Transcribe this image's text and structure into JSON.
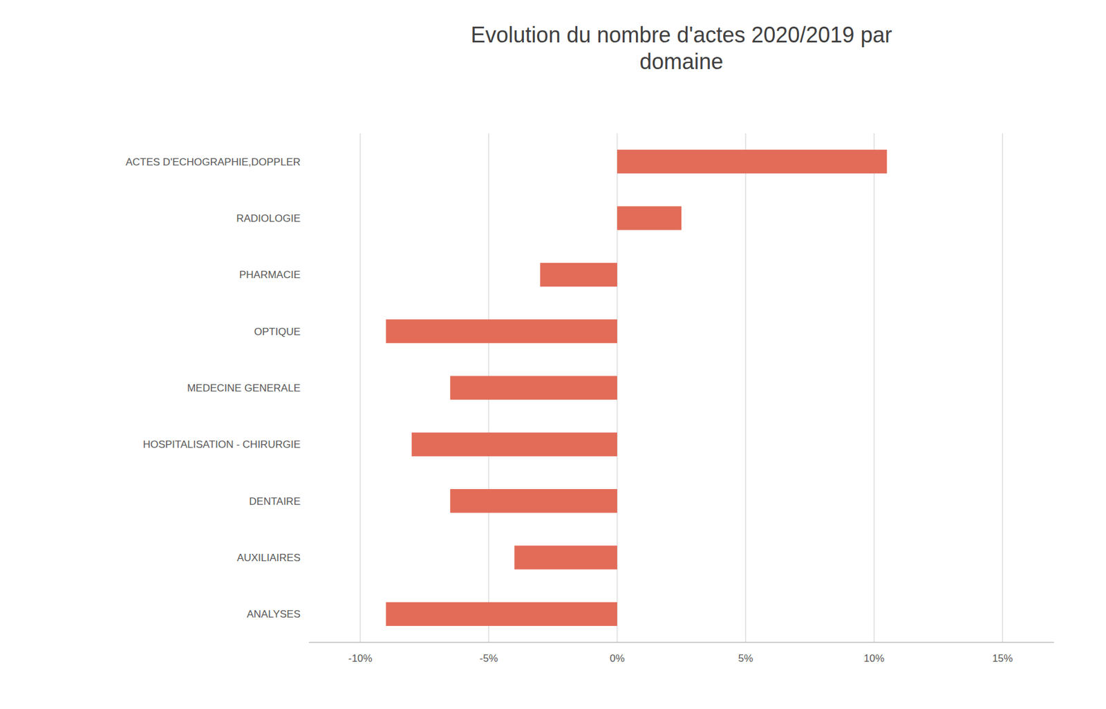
{
  "chart_data": {
    "type": "bar",
    "orientation": "horizontal",
    "title": "Evolution du nombre d'actes 2020/2019 par\ndomaine",
    "categories": [
      "ACTES D'ECHOGRAPHIE,DOPPLER",
      "RADIOLOGIE",
      "PHARMACIE",
      "OPTIQUE",
      "MEDECINE GENERALE",
      "HOSPITALISATION - CHIRURGIE",
      "DENTAIRE",
      "AUXILIAIRES",
      "ANALYSES"
    ],
    "values": [
      10.5,
      2.5,
      -3.0,
      -9.0,
      -6.5,
      -8.0,
      -6.5,
      -4.0,
      -9.0
    ],
    "color": "#e36c59",
    "xlim": [
      -12,
      17
    ],
    "xticks": [
      {
        "value": -10,
        "label": "-10%"
      },
      {
        "value": -5,
        "label": "-5%"
      },
      {
        "value": 0,
        "label": "0%"
      },
      {
        "value": 5,
        "label": "5%"
      },
      {
        "value": 10,
        "label": "10%"
      },
      {
        "value": 15,
        "label": "15%"
      }
    ],
    "grid": true
  }
}
